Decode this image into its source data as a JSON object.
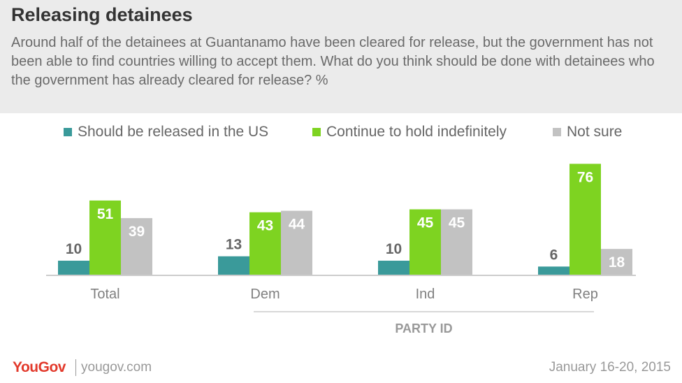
{
  "title": "Releasing detainees",
  "subtitle": "Around half of the detainees at Guantanamo have been cleared for release, but the government has not been able to find countries willing to accept them. What do you think should be done with detainees who the government has already cleared for release? %",
  "footer": {
    "brand": "YouGov",
    "url": "yougov.com",
    "date": "January 16-20, 2015"
  },
  "chart_data": {
    "type": "bar",
    "categories": [
      "Total",
      "Dem",
      "Ind",
      "Rep"
    ],
    "group_label": "PARTY ID",
    "series": [
      {
        "name": "Should be released in the US",
        "color": "#3a9a9a",
        "values": [
          10,
          13,
          10,
          6
        ]
      },
      {
        "name": "Continue to hold indefinitely",
        "color": "#7ed321",
        "values": [
          51,
          43,
          45,
          76
        ]
      },
      {
        "name": "Not sure",
        "color": "#c2c2c2",
        "values": [
          39,
          44,
          45,
          18
        ]
      }
    ],
    "ylim": [
      0,
      80
    ],
    "grid": false,
    "legend_position": "top"
  }
}
